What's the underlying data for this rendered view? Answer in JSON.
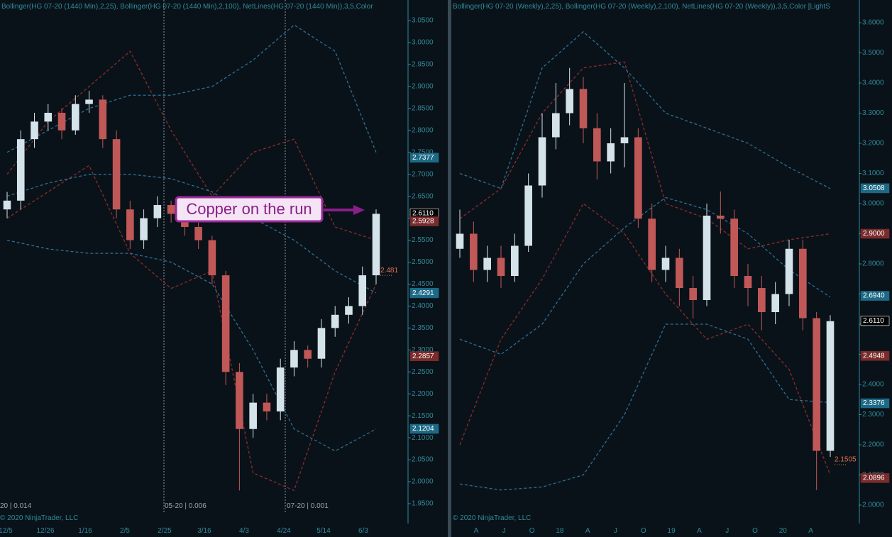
{
  "chart_data": [
    {
      "type": "candlestick",
      "indicator_label": "Bollinger(HG 07-20 (1440 Min),2,25), Bollinger(HG 07-20 (1440 Min),2,100), NetLines(HG 07-20 (1440 Min)),3,5,Color",
      "ylim": [
        1.95,
        3.05
      ],
      "yticks": [
        {
          "value": 1.95,
          "label": "1.9500"
        },
        {
          "value": 2.0,
          "label": "2.0000"
        },
        {
          "value": 2.05,
          "label": "2.0500"
        },
        {
          "value": 2.1,
          "label": "2.1000"
        },
        {
          "value": 2.15,
          "label": "2.1500"
        },
        {
          "value": 2.2,
          "label": "2.2000"
        },
        {
          "value": 2.25,
          "label": "2.2500"
        },
        {
          "value": 2.3,
          "label": "2.3000"
        },
        {
          "value": 2.35,
          "label": "2.3500"
        },
        {
          "value": 2.4,
          "label": "2.4000"
        },
        {
          "value": 2.45,
          "label": "2.4500"
        },
        {
          "value": 2.5,
          "label": "2.5000"
        },
        {
          "value": 2.55,
          "label": "2.5500"
        },
        {
          "value": 2.6,
          "label": "2.6000"
        },
        {
          "value": 2.65,
          "label": "2.6500"
        },
        {
          "value": 2.7,
          "label": "2.7000"
        },
        {
          "value": 2.75,
          "label": "2.7500"
        },
        {
          "value": 2.8,
          "label": "2.8000"
        },
        {
          "value": 2.85,
          "label": "2.8500"
        },
        {
          "value": 2.9,
          "label": "2.9000"
        },
        {
          "value": 2.95,
          "label": "2.9500"
        },
        {
          "value": 3.0,
          "label": "3.0000"
        },
        {
          "value": 3.05,
          "label": "3.0500"
        }
      ],
      "open": [
        2.62,
        2.64,
        2.78,
        2.82,
        2.84,
        2.8,
        2.86,
        2.87,
        2.78,
        2.62,
        2.55,
        2.6,
        2.63,
        2.61,
        2.58,
        2.55,
        2.47,
        2.25,
        2.12,
        2.18,
        2.16,
        2.26,
        2.3,
        2.28,
        2.35,
        2.38,
        2.4,
        2.47
      ],
      "high": [
        2.66,
        2.8,
        2.84,
        2.86,
        2.85,
        2.88,
        2.89,
        2.88,
        2.8,
        2.64,
        2.62,
        2.65,
        2.64,
        2.62,
        2.59,
        2.56,
        2.48,
        2.27,
        2.2,
        2.2,
        2.28,
        2.32,
        2.31,
        2.37,
        2.4,
        2.42,
        2.49,
        2.62
      ],
      "low": [
        2.6,
        2.62,
        2.76,
        2.8,
        2.78,
        2.79,
        2.84,
        2.76,
        2.6,
        2.53,
        2.53,
        2.58,
        2.59,
        2.56,
        2.53,
        2.45,
        2.22,
        1.98,
        2.1,
        2.14,
        2.14,
        2.24,
        2.26,
        2.26,
        2.33,
        2.36,
        2.38,
        2.45
      ],
      "close": [
        2.64,
        2.78,
        2.82,
        2.84,
        2.8,
        2.86,
        2.87,
        2.78,
        2.62,
        2.55,
        2.6,
        2.63,
        2.61,
        2.58,
        2.55,
        2.47,
        2.25,
        2.12,
        2.18,
        2.16,
        2.26,
        2.3,
        2.28,
        2.35,
        2.38,
        2.4,
        2.47,
        2.61
      ],
      "band_x": [
        0,
        3,
        6,
        9,
        12,
        15,
        18,
        21,
        24,
        27
      ],
      "bands": [
        {
          "color": "#8b2b2b",
          "values": [
            2.7,
            2.82,
            2.9,
            2.98,
            2.8,
            2.65,
            2.75,
            2.78,
            2.58,
            2.55
          ]
        },
        {
          "color": "#8b2b2b",
          "values": [
            2.6,
            2.66,
            2.72,
            2.52,
            2.44,
            2.48,
            2.02,
            1.98,
            2.25,
            2.45
          ]
        },
        {
          "color": "#2d6f95",
          "values": [
            2.75,
            2.8,
            2.85,
            2.88,
            2.88,
            2.9,
            2.96,
            3.04,
            2.98,
            2.75
          ]
        },
        {
          "color": "#2d6f95",
          "values": [
            2.65,
            2.68,
            2.7,
            2.7,
            2.69,
            2.66,
            2.6,
            2.55,
            2.48,
            2.43
          ]
        },
        {
          "color": "#2d6f95",
          "values": [
            2.55,
            2.53,
            2.52,
            2.52,
            2.5,
            2.45,
            2.3,
            2.12,
            2.07,
            2.12
          ]
        }
      ],
      "markers": [
        {
          "value": 2.7377,
          "color": "#1d6a86"
        },
        {
          "value": 2.611,
          "label": "2.6110",
          "color": "#000000"
        },
        {
          "value": 2.5928,
          "color": "#7a2b2b"
        },
        {
          "value": 2.4302,
          "color": "#1d6a86"
        },
        {
          "value": 2.4291,
          "color": "#1d6a86"
        },
        {
          "value": 2.2857,
          "color": "#7a2b2b"
        },
        {
          "value": 2.1204,
          "color": "#1d6a86"
        }
      ],
      "value_label": 2.481,
      "xlabels": [
        "12/5",
        "12/26",
        "1/16",
        "2/5",
        "2/25",
        "3/16",
        "4/3",
        "4/24",
        "5/14",
        "6/3"
      ],
      "rollovers": [
        "20 | 0.014",
        "05-20 | 0.006",
        "07-20 | 0.001"
      ],
      "copyright": "© 2020 NinjaTrader, LLC",
      "annotation": "Copper on the run"
    },
    {
      "type": "candlestick",
      "indicator_label": "Bollinger(HG 07-20 (Weekly),2,25), Bollinger(HG 07-20 (Weekly),2,100), NetLines(HG 07-20 (Weekly)),3,5,Color [LightS",
      "ylim": [
        2.0,
        3.6
      ],
      "yticks": [
        {
          "value": 2.0,
          "label": "2.0000"
        },
        {
          "value": 2.1,
          "label": "2.1000"
        },
        {
          "value": 2.2,
          "label": "2.2000"
        },
        {
          "value": 2.3,
          "label": "2.3000"
        },
        {
          "value": 2.4,
          "label": "2.4000"
        },
        {
          "value": 2.5,
          "label": "2.5000"
        },
        {
          "value": 2.6,
          "label": "2.6000"
        },
        {
          "value": 2.7,
          "label": "2.7000"
        },
        {
          "value": 2.8,
          "label": "2.8000"
        },
        {
          "value": 2.9,
          "label": "2.9000"
        },
        {
          "value": 3.0,
          "label": "3.0000"
        },
        {
          "value": 3.1,
          "label": "3.1000"
        },
        {
          "value": 3.2,
          "label": "3.2000"
        },
        {
          "value": 3.3,
          "label": "3.3000"
        },
        {
          "value": 3.4,
          "label": "3.4000"
        },
        {
          "value": 3.5,
          "label": "3.5000"
        },
        {
          "value": 3.6,
          "label": "3.6000"
        }
      ],
      "open": [
        2.85,
        2.9,
        2.78,
        2.82,
        2.76,
        2.86,
        3.06,
        3.22,
        3.3,
        3.38,
        3.25,
        3.14,
        3.2,
        3.22,
        2.95,
        2.78,
        2.82,
        2.72,
        2.68,
        2.96,
        2.95,
        2.76,
        2.72,
        2.64,
        2.7,
        2.85,
        2.62,
        2.18
      ],
      "high": [
        2.98,
        2.94,
        2.86,
        2.86,
        2.9,
        3.1,
        3.3,
        3.4,
        3.45,
        3.42,
        3.3,
        3.25,
        3.4,
        3.25,
        3.0,
        2.86,
        2.85,
        2.76,
        3.0,
        3.04,
        2.98,
        2.8,
        2.76,
        2.74,
        2.88,
        2.88,
        2.64,
        2.63
      ],
      "low": [
        2.82,
        2.74,
        2.74,
        2.72,
        2.74,
        2.84,
        3.02,
        3.18,
        3.26,
        3.2,
        3.08,
        3.1,
        3.12,
        2.92,
        2.74,
        2.74,
        2.66,
        2.62,
        2.66,
        2.9,
        2.72,
        2.66,
        2.58,
        2.6,
        2.66,
        2.58,
        2.05,
        2.16
      ],
      "close": [
        2.9,
        2.78,
        2.82,
        2.76,
        2.86,
        3.06,
        3.22,
        3.3,
        3.38,
        3.25,
        3.14,
        3.2,
        3.22,
        2.95,
        2.78,
        2.82,
        2.72,
        2.68,
        2.96,
        2.95,
        2.76,
        2.72,
        2.64,
        2.7,
        2.85,
        2.62,
        2.18,
        2.61
      ],
      "band_x": [
        0,
        3,
        6,
        9,
        12,
        15,
        18,
        21,
        24,
        27
      ],
      "bands": [
        {
          "color": "#8b2b2b",
          "values": [
            2.95,
            3.05,
            3.3,
            3.45,
            3.47,
            3.0,
            2.95,
            2.85,
            2.88,
            2.9
          ]
        },
        {
          "color": "#8b2b2b",
          "values": [
            2.2,
            2.55,
            2.75,
            3.0,
            2.9,
            2.7,
            2.55,
            2.6,
            2.45,
            2.1
          ]
        },
        {
          "color": "#2d6f95",
          "values": [
            3.1,
            3.05,
            3.45,
            3.57,
            3.45,
            3.3,
            3.25,
            3.2,
            3.12,
            3.05
          ]
        },
        {
          "color": "#2d6f95",
          "values": [
            2.55,
            2.5,
            2.6,
            2.8,
            2.92,
            3.02,
            2.98,
            2.9,
            2.78,
            2.69
          ]
        },
        {
          "color": "#2d6f95",
          "values": [
            2.07,
            2.05,
            2.06,
            2.1,
            2.3,
            2.6,
            2.6,
            2.55,
            2.35,
            2.34
          ]
        }
      ],
      "markers": [
        {
          "value": 3.0508,
          "color": "#1d6a86"
        },
        {
          "value": 2.9,
          "label": "2.9000",
          "color": "#7a2b2b"
        },
        {
          "value": 2.694,
          "label": "2.6940",
          "color": "#1d6a86"
        },
        {
          "value": 2.611,
          "label": "2.6110",
          "color": "#000000"
        },
        {
          "value": 2.4948,
          "color": "#7a2b2b"
        },
        {
          "value": 2.3376,
          "color": "#1d6a86"
        },
        {
          "value": 2.0896,
          "color": "#7a2b2b"
        }
      ],
      "value_label": 2.1505,
      "xlabels": [
        "A",
        "J",
        "O",
        "18",
        "A",
        "J",
        "O",
        "19",
        "A",
        "J",
        "O",
        "20",
        "A"
      ],
      "copyright": "© 2020 NinjaTrader, LLC"
    }
  ]
}
